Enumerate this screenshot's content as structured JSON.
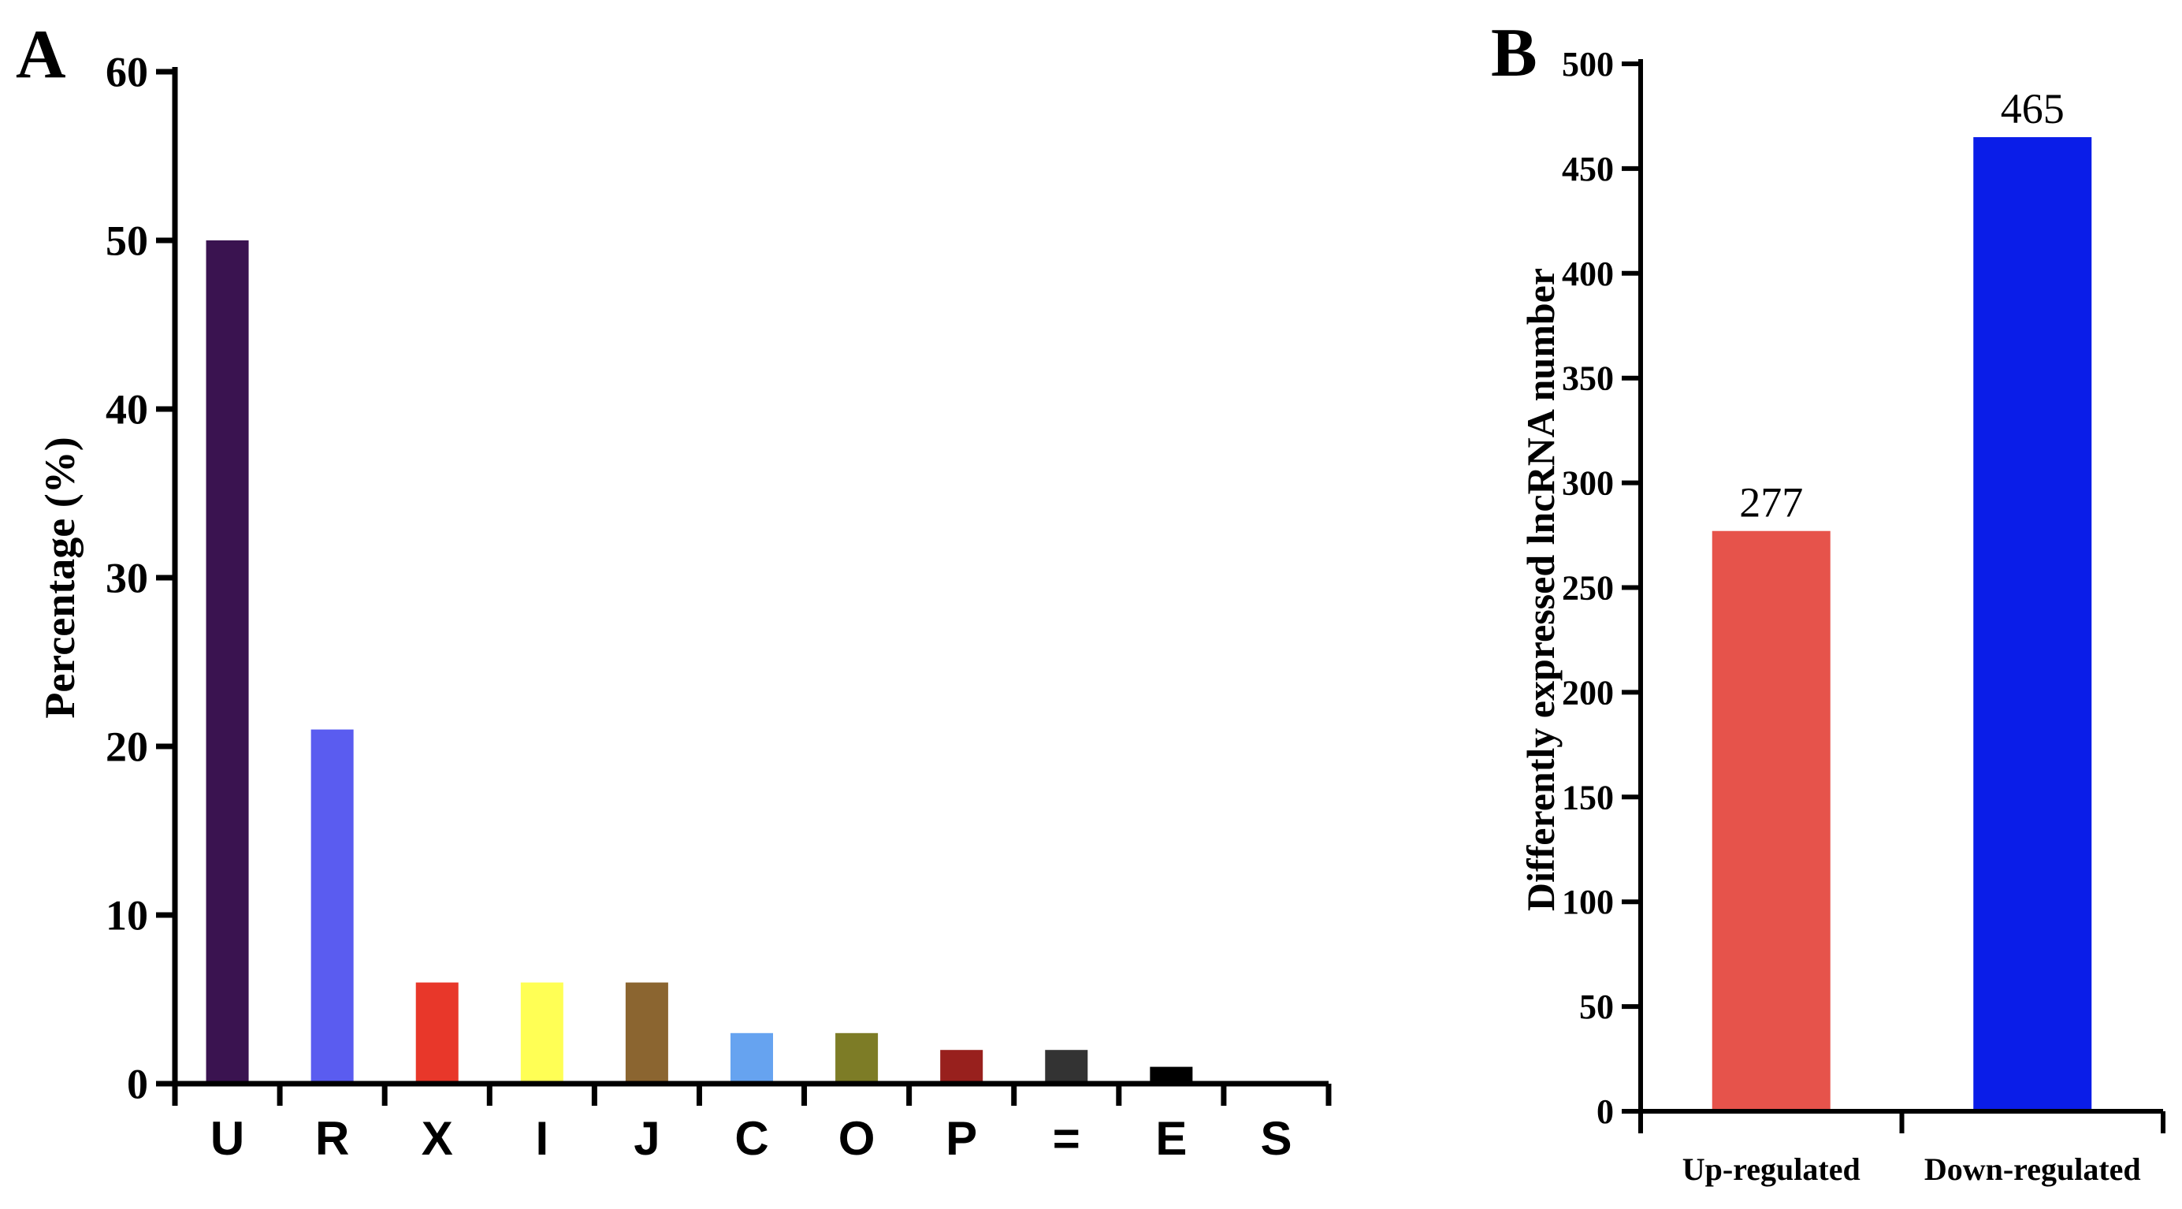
{
  "chart_data": [
    {
      "panel_label": "A",
      "type": "bar",
      "title": "",
      "xlabel": "",
      "ylabel": "Percentage (%)",
      "ylim": [
        0,
        60
      ],
      "yticks": [
        0,
        10,
        20,
        30,
        40,
        50,
        60
      ],
      "categories": [
        "U",
        "R",
        "X",
        "I",
        "J",
        "C",
        "O",
        "P",
        "=",
        "E",
        "S"
      ],
      "values": [
        50,
        21,
        6,
        6,
        6,
        3,
        3,
        2,
        2,
        1,
        0
      ],
      "colors": [
        "#3a1350",
        "#5a5cf0",
        "#e8372a",
        "#ffff55",
        "#8b6530",
        "#66a3f0",
        "#7d7c26",
        "#98201d",
        "#333333",
        "#000000",
        "#000000"
      ],
      "grid": false,
      "legend": "none"
    },
    {
      "panel_label": "B",
      "type": "bar",
      "title": "",
      "xlabel": "",
      "ylabel": "Differently expressed lncRNA number",
      "ylim": [
        0,
        500
      ],
      "yticks": [
        0,
        50,
        100,
        150,
        200,
        250,
        300,
        350,
        400,
        450,
        500
      ],
      "categories": [
        "Up-regulated",
        "Down-regulated"
      ],
      "values": [
        277,
        465
      ],
      "data_labels": [
        "277",
        "465"
      ],
      "colors": [
        "#e6534b",
        "#0a1de8"
      ],
      "grid": false,
      "legend": "none"
    }
  ]
}
